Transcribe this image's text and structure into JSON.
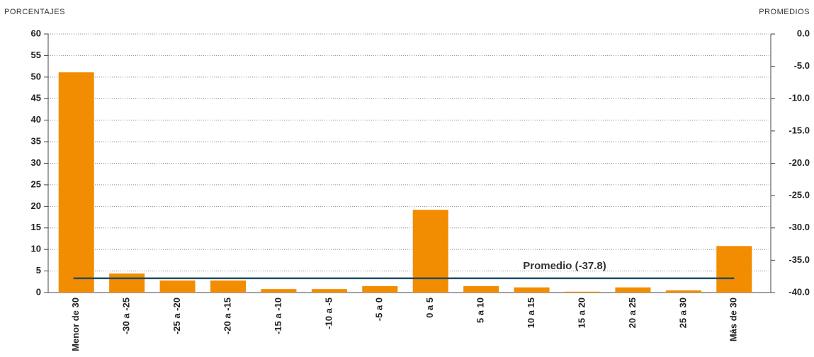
{
  "chart_data": {
    "type": "bar",
    "y_label": "PORCENTAJES",
    "y2_label": "PROMEDIOS",
    "categories": [
      "Menor de 30",
      "-30 a -25",
      "-25 a -20",
      "-20 a -15",
      "-15 a -10",
      "-10 a -5",
      "-5 a 0",
      "0 a 5",
      "5 a 10",
      "10 a 15",
      "15 a 20",
      "20 a 25",
      "25 a 30",
      "Más de 30"
    ],
    "values": [
      51.1,
      4.4,
      2.8,
      2.8,
      0.8,
      0.8,
      1.5,
      19.2,
      1.5,
      1.2,
      0.2,
      1.2,
      0.5,
      10.8
    ],
    "color": "#f28c00",
    "ylim": [
      0,
      60
    ],
    "yticks": [
      0,
      5,
      10,
      15,
      20,
      25,
      30,
      35,
      40,
      45,
      50,
      55,
      60
    ],
    "y2lim": [
      -40,
      0
    ],
    "y2ticks": [
      {
        "value": -40,
        "label": "-40.0"
      },
      {
        "value": -35,
        "label": "-35.0"
      },
      {
        "value": -30,
        "label": "-30.0"
      },
      {
        "value": -25,
        "label": "-25.0"
      },
      {
        "value": -20,
        "label": "-20.0"
      },
      {
        "value": -15,
        "label": "-15.0"
      },
      {
        "value": -10,
        "label": "-10.0"
      },
      {
        "value": -5,
        "label": "-5.0"
      },
      {
        "value": 0,
        "label": "0.0"
      }
    ],
    "reference_line": {
      "value": -37.8,
      "label": "Promedio (-37.8)",
      "axis": "y2",
      "color": "#1f4e63"
    },
    "grid": true
  }
}
